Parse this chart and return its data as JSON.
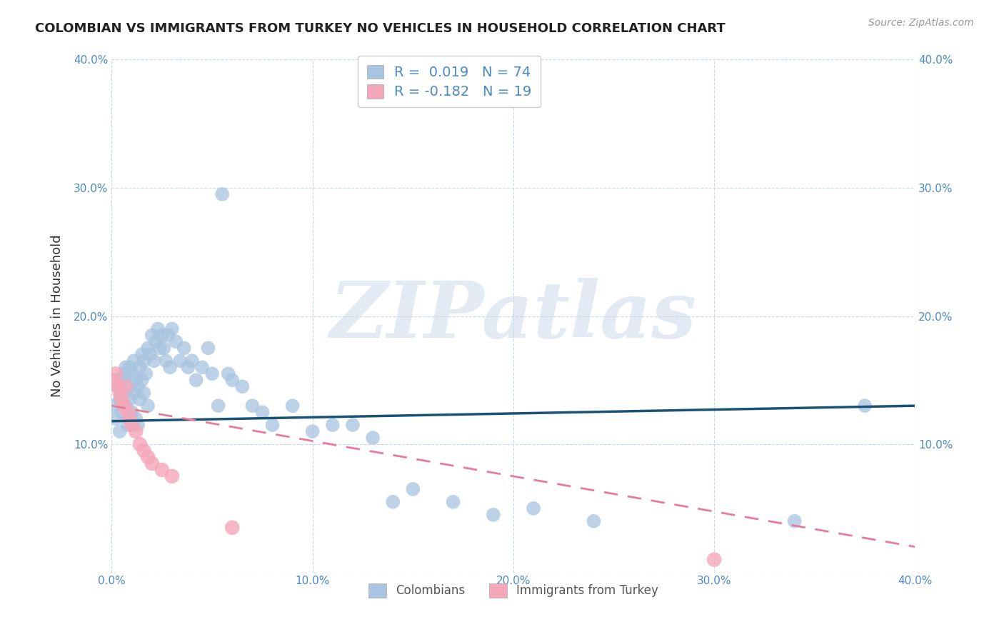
{
  "title": "COLOMBIAN VS IMMIGRANTS FROM TURKEY NO VEHICLES IN HOUSEHOLD CORRELATION CHART",
  "source": "Source: ZipAtlas.com",
  "ylabel": "No Vehicles in Household",
  "watermark": "ZIPatlas",
  "xlim": [
    0.0,
    0.4
  ],
  "ylim": [
    0.0,
    0.4
  ],
  "xticks": [
    0.0,
    0.1,
    0.2,
    0.3,
    0.4
  ],
  "yticks": [
    0.0,
    0.1,
    0.2,
    0.3,
    0.4
  ],
  "xticklabels": [
    "0.0%",
    "10.0%",
    "20.0%",
    "30.0%",
    "40.0%"
  ],
  "yticklabels": [
    "",
    "10.0%",
    "20.0%",
    "30.0%",
    "40.0%"
  ],
  "legend_labels": [
    "Colombians",
    "Immigrants from Turkey"
  ],
  "colombian_color": "#a8c4e0",
  "turkey_color": "#f4a7b9",
  "blue_line_color": "#1a5276",
  "pink_line_color": "#e87a9a",
  "grid_color": "#c8d8e8",
  "R_colombian": 0.019,
  "N_colombian": 74,
  "R_turkey": -0.182,
  "N_turkey": 19,
  "colombian_x": [
    0.001,
    0.002,
    0.003,
    0.004,
    0.004,
    0.005,
    0.005,
    0.006,
    0.006,
    0.007,
    0.007,
    0.008,
    0.008,
    0.009,
    0.009,
    0.01,
    0.01,
    0.011,
    0.011,
    0.012,
    0.012,
    0.013,
    0.013,
    0.014,
    0.014,
    0.015,
    0.015,
    0.016,
    0.016,
    0.017,
    0.018,
    0.018,
    0.019,
    0.02,
    0.021,
    0.022,
    0.023,
    0.024,
    0.025,
    0.026,
    0.027,
    0.028,
    0.029,
    0.03,
    0.032,
    0.034,
    0.036,
    0.038,
    0.04,
    0.042,
    0.045,
    0.048,
    0.05,
    0.053,
    0.055,
    0.058,
    0.06,
    0.065,
    0.07,
    0.075,
    0.08,
    0.09,
    0.1,
    0.11,
    0.12,
    0.13,
    0.14,
    0.15,
    0.17,
    0.19,
    0.21,
    0.24,
    0.34,
    0.375
  ],
  "colombian_y": [
    0.13,
    0.12,
    0.145,
    0.135,
    0.11,
    0.15,
    0.125,
    0.155,
    0.14,
    0.16,
    0.13,
    0.145,
    0.115,
    0.135,
    0.16,
    0.155,
    0.125,
    0.165,
    0.14,
    0.15,
    0.12,
    0.145,
    0.115,
    0.16,
    0.135,
    0.17,
    0.15,
    0.165,
    0.14,
    0.155,
    0.175,
    0.13,
    0.17,
    0.185,
    0.165,
    0.18,
    0.19,
    0.175,
    0.185,
    0.175,
    0.165,
    0.185,
    0.16,
    0.19,
    0.18,
    0.165,
    0.175,
    0.16,
    0.165,
    0.15,
    0.16,
    0.175,
    0.155,
    0.13,
    0.295,
    0.155,
    0.15,
    0.145,
    0.13,
    0.125,
    0.115,
    0.13,
    0.11,
    0.115,
    0.115,
    0.105,
    0.055,
    0.065,
    0.055,
    0.045,
    0.05,
    0.04,
    0.04,
    0.13
  ],
  "turkey_x": [
    0.001,
    0.002,
    0.003,
    0.004,
    0.005,
    0.006,
    0.007,
    0.008,
    0.009,
    0.01,
    0.012,
    0.014,
    0.016,
    0.018,
    0.02,
    0.025,
    0.03,
    0.06,
    0.3
  ],
  "turkey_y": [
    0.15,
    0.155,
    0.145,
    0.14,
    0.135,
    0.13,
    0.145,
    0.125,
    0.12,
    0.115,
    0.11,
    0.1,
    0.095,
    0.09,
    0.085,
    0.08,
    0.075,
    0.035,
    0.01
  ],
  "col_trend_x": [
    0.0,
    0.4
  ],
  "col_trend_y": [
    0.118,
    0.13
  ],
  "turk_trend_x": [
    0.0,
    0.4
  ],
  "turk_trend_y": [
    0.13,
    0.02
  ]
}
